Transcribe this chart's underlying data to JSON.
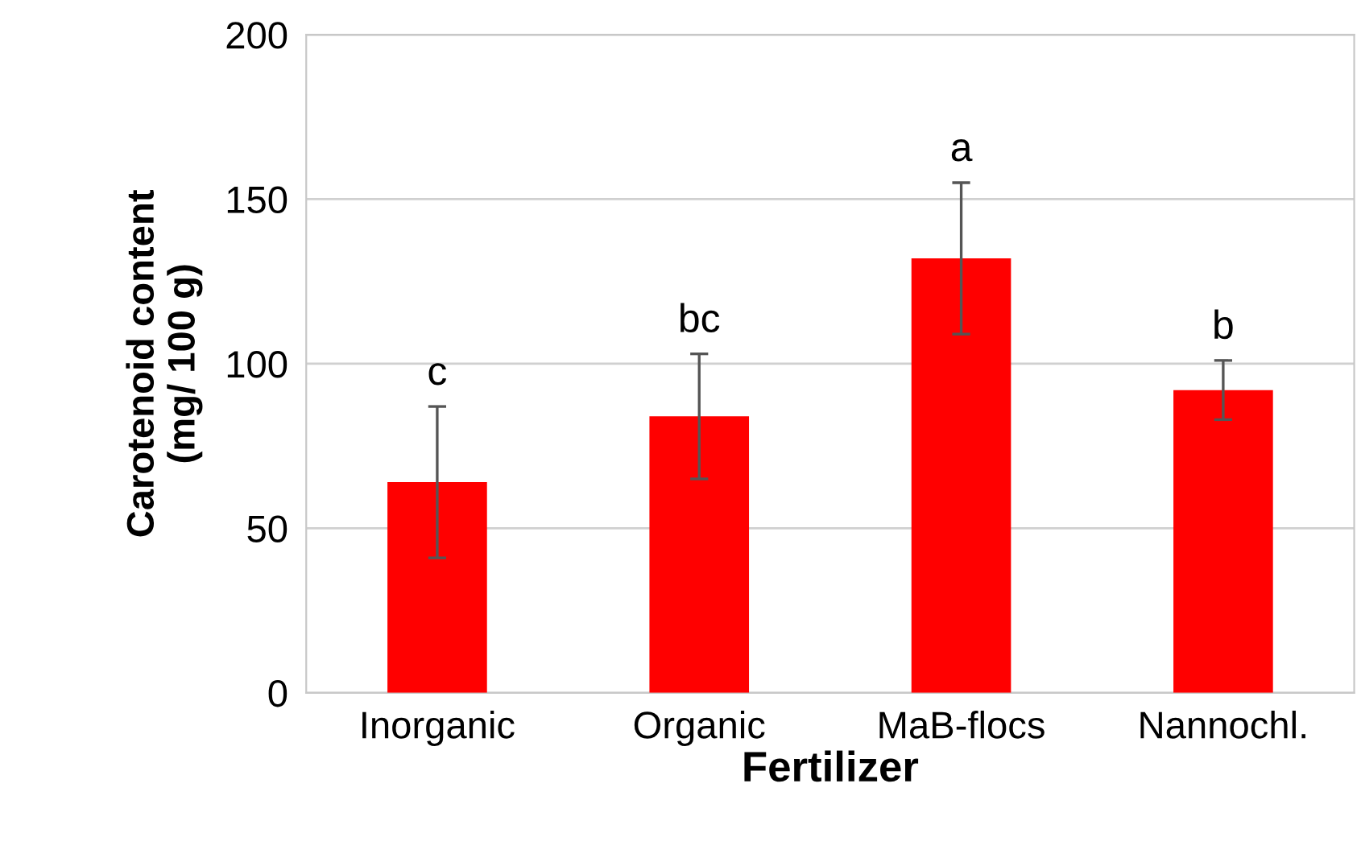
{
  "chart_data": {
    "type": "bar",
    "xlabel": "Fertilizer",
    "ylabel": "Carotenoid content\n(mg/ 100 g)",
    "categories": [
      "Inorganic",
      "Organic",
      "MaB-flocs",
      "Nannochl."
    ],
    "values": [
      64,
      84,
      132,
      92
    ],
    "errors": [
      23,
      19,
      23,
      9
    ],
    "color": "#ff0000",
    "ylim": [
      0,
      200
    ],
    "yticks": [
      0,
      50,
      100,
      150,
      200
    ],
    "grid": "y",
    "annotations": [
      {
        "text": "c",
        "x": "Inorganic",
        "y": 87
      },
      {
        "text": "bc",
        "x": "Organic",
        "y": 103
      },
      {
        "text": "a",
        "x": "MaB-flocs",
        "y": 155
      },
      {
        "text": "b",
        "x": "Nannochl.",
        "y": 101
      }
    ]
  }
}
